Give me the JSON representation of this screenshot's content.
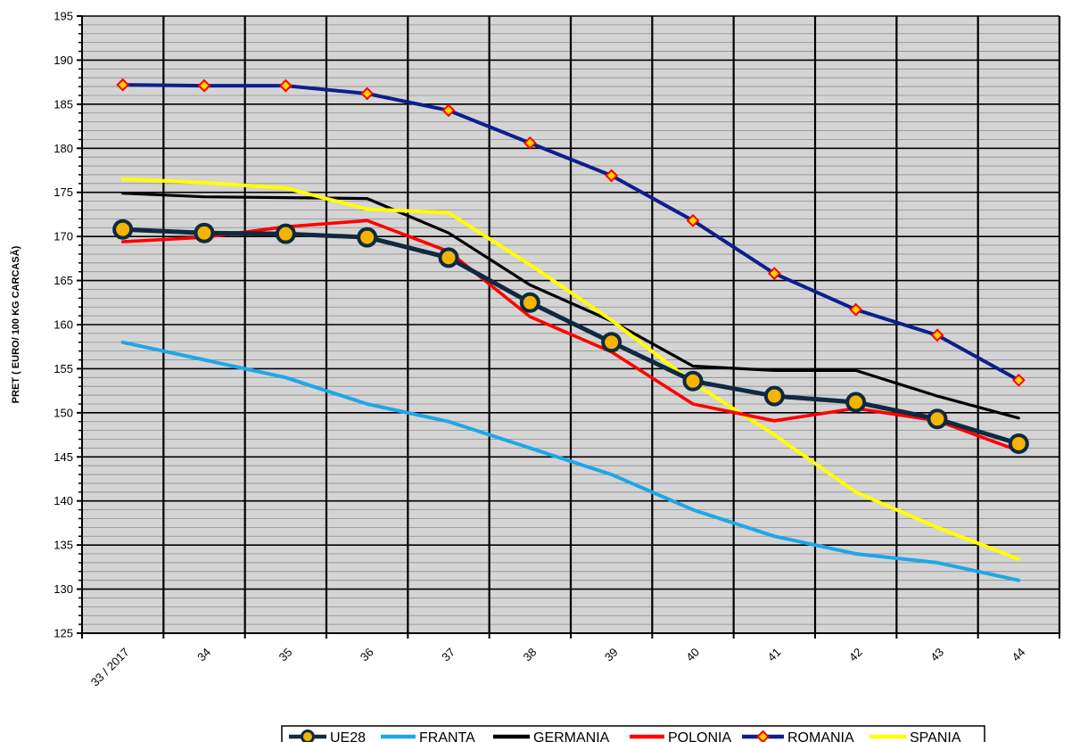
{
  "chart_data": {
    "type": "line",
    "ylabel": "PRET ( EURO/ 100 KG CARCASĂ)",
    "xlabel": "",
    "categories": [
      "33 / 2017",
      "34",
      "35",
      "36",
      "37",
      "38",
      "39",
      "40",
      "41",
      "42",
      "43",
      "44"
    ],
    "ylim": [
      125,
      195
    ],
    "y_ticks": [
      125,
      130,
      135,
      140,
      145,
      150,
      155,
      160,
      165,
      170,
      175,
      180,
      185,
      190,
      195
    ],
    "grid": "on",
    "legend_position": "bottom",
    "plot_background": "#d4d4d4",
    "series": [
      {
        "name": "UE28",
        "color": "#0f2a40",
        "marker": "circle-orange",
        "values": [
          170.8,
          170.4,
          170.3,
          169.9,
          167.6,
          162.5,
          158.0,
          153.6,
          151.9,
          151.2,
          149.3,
          146.5
        ]
      },
      {
        "name": "FRANTA",
        "color": "#1ea7e6",
        "marker": "none",
        "values": [
          158.0,
          156.0,
          154.0,
          151.0,
          149.0,
          146.0,
          143.0,
          139.0,
          136.0,
          134.0,
          133.0,
          131.0
        ]
      },
      {
        "name": "GERMANIA",
        "color": "#000000",
        "marker": "none",
        "values": [
          174.9,
          174.5,
          174.4,
          174.3,
          170.4,
          164.5,
          160.4,
          155.3,
          154.8,
          154.8,
          151.9,
          149.4
        ]
      },
      {
        "name": "POLONIA",
        "color": "#ff0000",
        "marker": "none",
        "values": [
          169.4,
          169.9,
          171.1,
          171.8,
          168.3,
          160.9,
          156.9,
          151.0,
          149.1,
          150.5,
          149.1,
          145.7
        ]
      },
      {
        "name": "ROMANIA",
        "color": "#0d1f8c",
        "marker": "diamond-red",
        "values": [
          187.2,
          187.1,
          187.1,
          186.2,
          184.3,
          180.6,
          176.9,
          171.8,
          165.8,
          161.7,
          158.8,
          153.7
        ]
      },
      {
        "name": "SPANIA",
        "color": "#ffff00",
        "marker": "none",
        "values": [
          176.5,
          176.1,
          175.5,
          173.1,
          172.7,
          166.8,
          160.5,
          153.4,
          147.5,
          141.0,
          137.0,
          133.4
        ]
      }
    ]
  }
}
